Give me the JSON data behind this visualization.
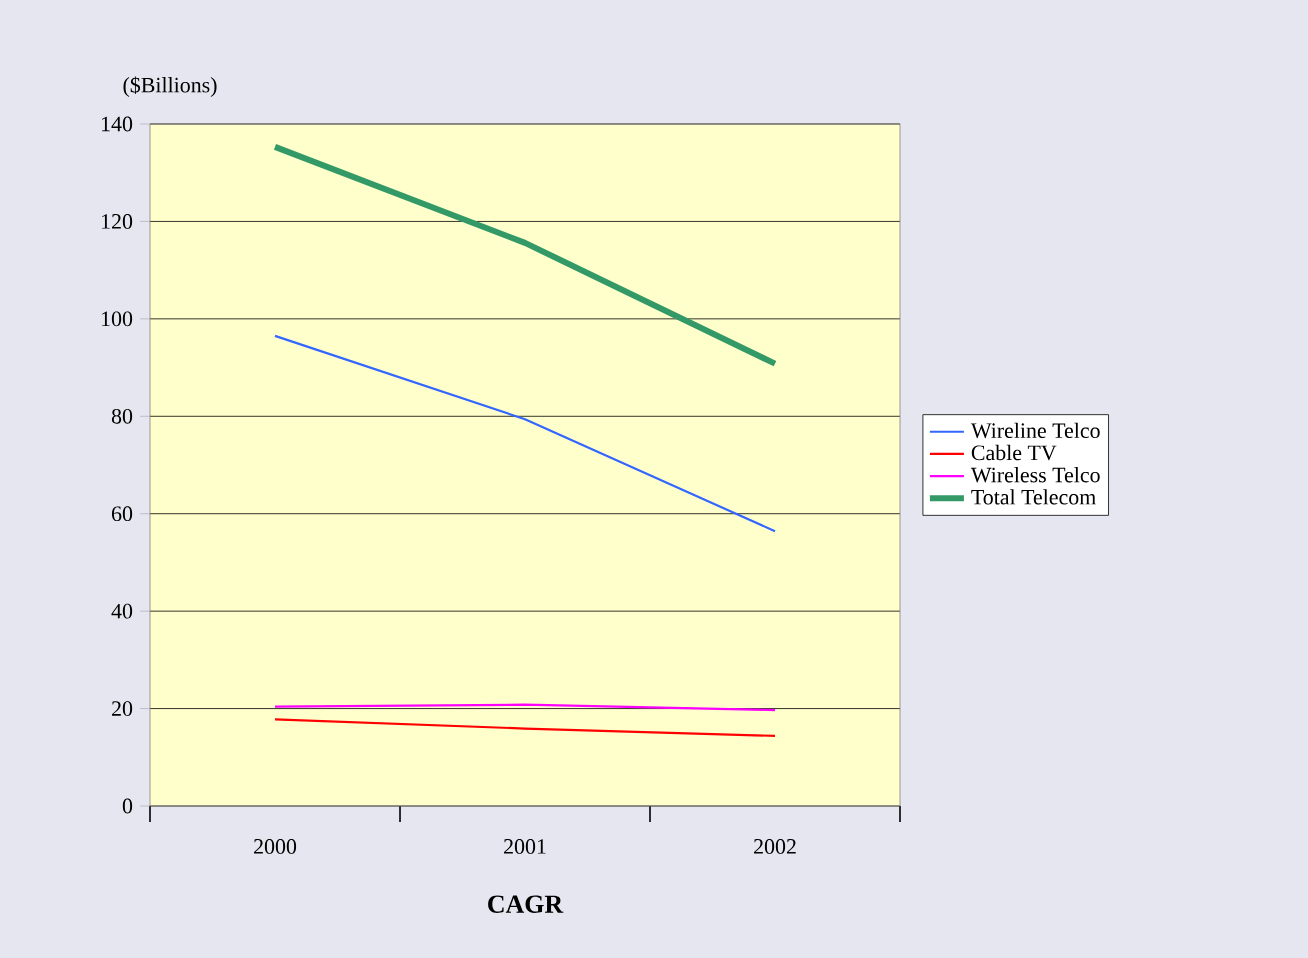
{
  "chart_data": {
    "type": "line",
    "ylabel": "($Billions)",
    "xlabel": "CAGR",
    "categories": [
      "2000",
      "2001",
      "2002"
    ],
    "series": [
      {
        "name": "Wireline Telco",
        "color": "#3366ff",
        "values": [
          96.5,
          79.4,
          56.4
        ]
      },
      {
        "name": "Cable TV",
        "color": "#ff0000",
        "values": [
          17.8,
          15.9,
          14.4
        ]
      },
      {
        "name": "Wireless Telco",
        "color": "#ff00ff",
        "values": [
          20.4,
          20.8,
          19.7
        ]
      },
      {
        "name": "Total Telecom",
        "color": "#339966",
        "values": [
          135.3,
          115.6,
          90.8
        ]
      }
    ],
    "ylim": [
      0,
      140
    ],
    "yticks": [
      0,
      20,
      40,
      60,
      80,
      100,
      120,
      140
    ],
    "grid": "y",
    "legend": "right",
    "marker": "none",
    "line_style": "solid"
  }
}
